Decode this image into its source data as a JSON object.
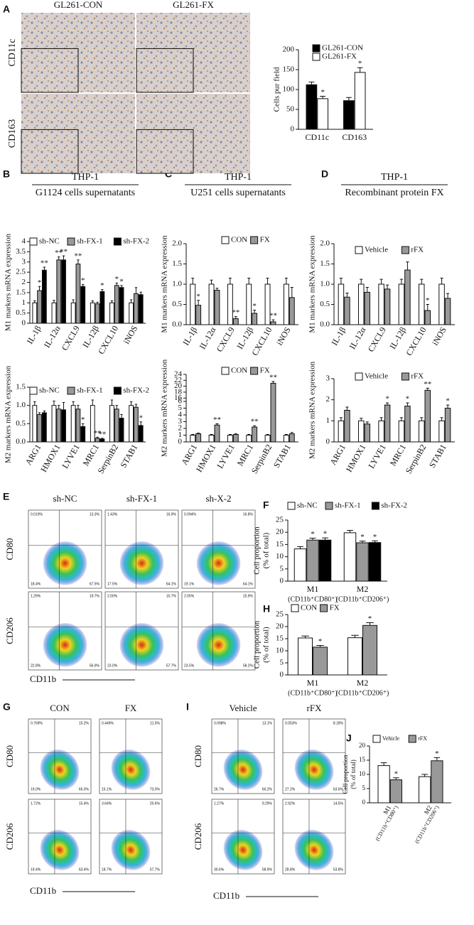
{
  "panels": [
    "A",
    "B",
    "C",
    "D",
    "E",
    "F",
    "G",
    "H",
    "I",
    "J"
  ],
  "ihc": {
    "columns": [
      "GL261-CON",
      "GL261-FX"
    ],
    "rows": [
      "CD11c",
      "CD163"
    ]
  },
  "flow": [
    {
      "columns": [
        "sh-NC",
        "sh-FX-1",
        "sh-X-2"
      ],
      "rows": [
        "CD80",
        "CD206"
      ],
      "xlabel": "CD11b",
      "quadrants": [
        [
          [
            "0.019%",
            "13.3%",
            "18.4%",
            "67.5%"
          ],
          [
            "1.43%",
            "16.9%",
            "17.5%",
            "64.1%"
          ],
          [
            "0.094%",
            "16.8%",
            "19.1%",
            "64.1%"
          ]
        ],
        [
          [
            "1.29%",
            "19.7%",
            "22.8%",
            "56.9%"
          ],
          [
            "2.00%",
            "15.7%",
            "23.0%",
            "57.7%"
          ],
          [
            "2.05%",
            "15.9%",
            "23.5%",
            "58.2%"
          ]
        ]
      ]
    },
    {
      "columns": [
        "CON",
        "FX"
      ],
      "rows": [
        "CD80",
        "CD206"
      ],
      "xlabel": "CD11b",
      "quadrants": [
        [
          [
            "0.769%",
            "15.2%",
            "19.0%",
            "65.0%"
          ],
          [
            "0.449%",
            "11.5%",
            "15.1%",
            "73.0%"
          ]
        ],
        [
          [
            "1.72%",
            "15.4%",
            "19.4%",
            "63.4%"
          ],
          [
            "3.64%",
            "20.6%",
            "18.7%",
            "57.7%"
          ]
        ]
      ]
    },
    {
      "columns": [
        "Vehicle",
        "rFX"
      ],
      "rows": [
        "CD80",
        "CD206"
      ],
      "xlabel": "CD11b",
      "quadrants": [
        [
          [
            "0.098%",
            "13.1%",
            "26.7%",
            "60.2%"
          ],
          [
            "0.053%",
            "8.18%",
            "27.2%",
            "63.6%"
          ]
        ],
        [
          [
            "1.27%",
            "9.29%",
            "30.6%",
            "58.9%"
          ],
          [
            "2.92%",
            "14.5%",
            "28.8%",
            "53.8%"
          ]
        ]
      ]
    }
  ],
  "chart_data": [
    {
      "type": "bar",
      "ylabel": "Cells pur field",
      "categories": [
        "CD11c",
        "CD163"
      ],
      "ylim": [
        0,
        200
      ],
      "yticks": [
        0,
        50,
        100,
        150,
        200
      ],
      "legend": "top-left",
      "series": [
        {
          "name": "GL261-CON",
          "color": "#000000",
          "values": [
            112,
            72
          ],
          "errors": [
            7,
            8
          ],
          "labels": [
            null,
            null
          ]
        },
        {
          "name": "GL261-FX",
          "color": "#ffffff",
          "values": [
            77,
            143
          ],
          "errors": [
            6,
            12
          ],
          "labels": [
            "*",
            "*"
          ]
        }
      ]
    },
    {
      "type": "bar",
      "title": "THP-1",
      "subtitle": "G1124 cells supernatants",
      "ylabel": "M1 markers mRNA expression",
      "categories": [
        "IL-1β",
        "IL-12α",
        "CXCL9",
        "IL-12β",
        "CXCL10",
        "iNOS"
      ],
      "ylim": [
        0,
        4
      ],
      "yticks": [
        0,
        0.5,
        1,
        1.5,
        2,
        2.5,
        3,
        3.5,
        4
      ],
      "legend": "top",
      "series": [
        {
          "name": "sh-NC",
          "color": "#ffffff",
          "values": [
            1,
            1,
            1,
            1,
            1,
            1
          ],
          "errors": [
            0.1,
            0.12,
            0.15,
            0.1,
            0.1,
            0.15
          ],
          "labels": [
            null,
            null,
            null,
            null,
            null,
            null
          ]
        },
        {
          "name": "sh-FX-1",
          "color": "#999999",
          "values": [
            1.6,
            3.1,
            2.9,
            0.95,
            1.85,
            1.45
          ],
          "errors": [
            0.2,
            0.15,
            0.2,
            0.08,
            0.12,
            0.3
          ],
          "labels": [
            "*",
            "**",
            "**",
            null,
            "*",
            null
          ]
        },
        {
          "name": "sh-FX-2",
          "color": "#000000",
          "values": [
            2.6,
            3.1,
            1.8,
            1.55,
            1.75,
            1.4
          ],
          "errors": [
            0.15,
            0.2,
            0.1,
            0.1,
            0.1,
            0.12
          ],
          "labels": [
            "**",
            "**",
            "*",
            "*",
            "*",
            null
          ]
        }
      ]
    },
    {
      "type": "bar",
      "ylabel": "M2 markers mRNA expression",
      "categories": [
        "ARG1",
        "HMOX1",
        "LYVE1",
        "MRC1",
        "SerpinB2",
        "STAB1"
      ],
      "ylim": [
        0,
        1.5
      ],
      "yticks": [
        {
          "value": 0,
          "label": "0.0"
        },
        0.5,
        {
          "value": 1,
          "label": "1.0"
        },
        1.5
      ],
      "legend": "top",
      "series": [
        {
          "name": "sh-NC",
          "color": "#ffffff",
          "values": [
            1,
            1,
            1,
            1,
            1,
            1
          ],
          "errors": [
            0.1,
            0.12,
            0.1,
            0.15,
            0.15,
            0.1
          ],
          "labels": [
            null,
            null,
            null,
            null,
            null,
            null
          ]
        },
        {
          "name": "sh-FX-1",
          "color": "#999999",
          "values": [
            0.75,
            0.9,
            0.9,
            0.1,
            0.9,
            0.95
          ],
          "errors": [
            0.05,
            0.1,
            0.1,
            0.03,
            0.1,
            0.08
          ],
          "labels": [
            null,
            null,
            null,
            "**",
            null,
            null
          ]
        },
        {
          "name": "sh-FX-2",
          "color": "#000000",
          "values": [
            0.8,
            0.88,
            0.42,
            0.08,
            0.65,
            0.45
          ],
          "errors": [
            0.05,
            0.2,
            0.08,
            0.02,
            0.1,
            0.1
          ],
          "labels": [
            null,
            null,
            "*",
            "**",
            null,
            "*"
          ]
        }
      ]
    },
    {
      "type": "bar",
      "title": "THP-1",
      "subtitle": "U251 cells supernatants",
      "ylabel": "M1 markers mRNA expression",
      "categories": [
        "IL-1β",
        "IL-12α",
        "CXCL9",
        "IL-12β",
        "CXCL10",
        "iNOS"
      ],
      "ylim": [
        0,
        2
      ],
      "yticks": [
        {
          "value": 0,
          "label": "0.0"
        },
        0.5,
        {
          "value": 1,
          "label": "1.0"
        },
        1.5,
        {
          "value": 2,
          "label": "2.0"
        }
      ],
      "legend": "top",
      "series": [
        {
          "name": "CON",
          "color": "#ffffff",
          "values": [
            1,
            1,
            1,
            1,
            1,
            1
          ],
          "errors": [
            0.15,
            0.1,
            0.15,
            0.15,
            0.15,
            0.15
          ],
          "labels": [
            null,
            null,
            null,
            null,
            null,
            null
          ]
        },
        {
          "name": "FX",
          "color": "#999999",
          "values": [
            0.48,
            0.85,
            0.15,
            0.28,
            0.07,
            0.67
          ],
          "errors": [
            0.12,
            0.05,
            0.05,
            0.08,
            0.05,
            0.25
          ],
          "labels": [
            "*",
            null,
            "**",
            "*",
            "**",
            null
          ]
        }
      ]
    },
    {
      "type": "bar",
      "ylabel": "M2 markers mRNA expression",
      "categories": [
        "ARG1",
        "HMOX1",
        "LYVE1",
        "MRC1",
        "SerpinB2",
        "STAB1"
      ],
      "ylim": [
        0,
        24
      ],
      "ybreak": [
        6,
        16
      ],
      "yticks": [
        0,
        1,
        2,
        3,
        4,
        5,
        6,
        16,
        18,
        20,
        22,
        24
      ],
      "legend": "top",
      "series": [
        {
          "name": "CON",
          "color": "#ffffff",
          "values": [
            1,
            1,
            1,
            1,
            1,
            1
          ],
          "errors": [
            0.1,
            0.1,
            0.1,
            0.1,
            0.1,
            0.1
          ],
          "labels": [
            null,
            null,
            null,
            null,
            null,
            null
          ]
        },
        {
          "name": "FX",
          "color": "#999999",
          "values": [
            1.2,
            2.5,
            1.1,
            2.2,
            21,
            1.2
          ],
          "errors": [
            0.1,
            0.2,
            0.1,
            0.2,
            0.6,
            0.2
          ],
          "labels": [
            null,
            "**",
            null,
            "**",
            "**",
            null
          ]
        }
      ]
    },
    {
      "type": "bar",
      "title": "THP-1",
      "subtitle": "Recombinant protein FX",
      "ylabel": "M1 markers mRNA expression",
      "categories": [
        "IL-1β",
        "IL-12α",
        "CXCL9",
        "IL-12β",
        "CXCL10",
        "iNOS"
      ],
      "ylim": [
        0,
        2
      ],
      "yticks": [
        {
          "value": 0,
          "label": "0.0"
        },
        0.5,
        {
          "value": 1,
          "label": "1.0"
        },
        1.5,
        {
          "value": 2,
          "label": "2.0"
        }
      ],
      "legend": "top",
      "series": [
        {
          "name": "Vehicle",
          "color": "#ffffff",
          "values": [
            1,
            1,
            1,
            1,
            1,
            1
          ],
          "errors": [
            0.15,
            0.12,
            0.12,
            0.12,
            0.12,
            0.15
          ],
          "labels": [
            null,
            null,
            null,
            null,
            null,
            null
          ]
        },
        {
          "name": "rFX",
          "color": "#999999",
          "values": [
            0.68,
            0.8,
            0.88,
            1.35,
            0.35,
            0.65
          ],
          "errors": [
            0.1,
            0.12,
            0.1,
            0.2,
            0.15,
            0.12
          ],
          "labels": [
            null,
            null,
            null,
            null,
            "*",
            null
          ]
        }
      ]
    },
    {
      "type": "bar",
      "ylabel": "M2 markers mRNA expression",
      "categories": [
        "ARG1",
        "HMOX1",
        "LYVE1",
        "MRC1",
        "SerpinB2",
        "STAB1"
      ],
      "ylim": [
        0,
        3
      ],
      "yticks": [
        0,
        1,
        2,
        3
      ],
      "legend": "top",
      "series": [
        {
          "name": "Vehicle",
          "color": "#ffffff",
          "values": [
            1,
            1,
            1,
            1,
            1,
            1
          ],
          "errors": [
            0.15,
            0.12,
            0.15,
            0.15,
            0.15,
            0.15
          ],
          "labels": [
            null,
            null,
            null,
            null,
            null,
            null
          ]
        },
        {
          "name": "rFX",
          "color": "#999999",
          "values": [
            1.5,
            0.85,
            1.75,
            1.7,
            2.45,
            1.6
          ],
          "errors": [
            0.15,
            0.1,
            0.1,
            0.15,
            0.1,
            0.15
          ],
          "labels": [
            null,
            null,
            "*",
            "*",
            "**",
            "*"
          ]
        }
      ]
    },
    {
      "type": "bar",
      "ylabel": [
        "Cell proportion",
        "(% of total)"
      ],
      "categories": [
        "M1",
        "M2"
      ],
      "category_notes": [
        "(CD11b⁺CD80⁺)",
        "(CD11b⁺CD206⁺)"
      ],
      "ylim": [
        0,
        25
      ],
      "yticks": [
        0,
        5,
        10,
        15,
        20,
        25
      ],
      "legend": "top",
      "series": [
        {
          "name": "sh-NC",
          "color": "#ffffff",
          "values": [
            13.2,
            19.8
          ],
          "errors": [
            0.9,
            1
          ],
          "labels": [
            null,
            null
          ]
        },
        {
          "name": "sh-FX-1",
          "color": "#999999",
          "values": [
            16.8,
            15.7
          ],
          "errors": [
            0.8,
            0.7
          ],
          "labels": [
            "*",
            "*"
          ]
        },
        {
          "name": "sh-FX-2",
          "color": "#000000",
          "values": [
            16.8,
            15.8
          ],
          "errors": [
            0.9,
            0.7
          ],
          "labels": [
            "*",
            "*"
          ]
        }
      ]
    },
    {
      "type": "bar",
      "ylabel": [
        "Cell proportion",
        "(% of total)"
      ],
      "categories": [
        "M1",
        "M2"
      ],
      "category_notes": [
        "(CD11b⁺CD80⁺)",
        "(CD11b⁺CD206⁺)"
      ],
      "ylim": [
        0,
        25
      ],
      "yticks": [
        0,
        5,
        10,
        15,
        20,
        25
      ],
      "legend": "top",
      "series": [
        {
          "name": "CON",
          "color": "#ffffff",
          "values": [
            15.3,
            15.4
          ],
          "errors": [
            0.8,
            1
          ],
          "labels": [
            null,
            null
          ]
        },
        {
          "name": "FX",
          "color": "#999999",
          "values": [
            11.5,
            20.5
          ],
          "errors": [
            0.7,
            1.1
          ],
          "labels": [
            "*",
            "*"
          ]
        }
      ]
    },
    {
      "type": "bar",
      "ylabel": [
        "Cell proportion",
        "(% of total)"
      ],
      "categories": [
        "M1",
        "M2"
      ],
      "category_notes": [
        "(CD11b⁺CD80⁺)",
        "(CD11b⁺CD206⁺)"
      ],
      "ylim": [
        0,
        20
      ],
      "yticks": [
        0,
        5,
        10,
        15,
        20
      ],
      "legend": "top",
      "series": [
        {
          "name": "Vehicle",
          "color": "#ffffff",
          "values": [
            13.1,
            9.2
          ],
          "errors": [
            1,
            0.8
          ],
          "labels": [
            null,
            null
          ]
        },
        {
          "name": "rFX",
          "color": "#999999",
          "values": [
            8.1,
            14.8
          ],
          "errors": [
            0.7,
            1.1
          ],
          "labels": [
            "*",
            "*"
          ]
        }
      ]
    }
  ]
}
